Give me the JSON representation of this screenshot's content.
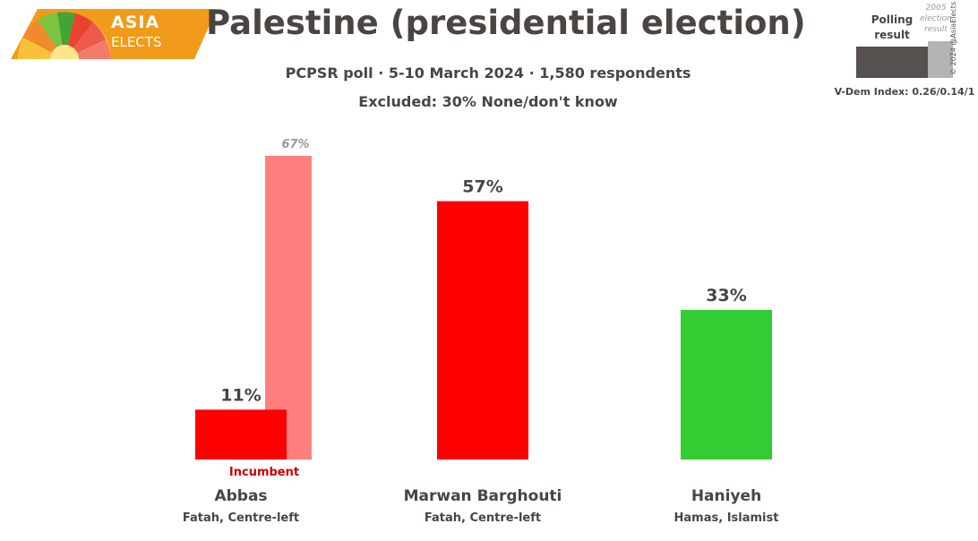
{
  "logo": {
    "line1": "ASIA",
    "line2": "ELECTS"
  },
  "header": {
    "title": "Palestine (presidential election)",
    "subtitle": "PCPSR poll · 5-10 March 2024 · 1,580 respondents",
    "excluded": "Excluded: 30% None/don't know"
  },
  "legend": {
    "poll_label_1": "Polling",
    "poll_label_2": "result",
    "election_label_1": "2005",
    "election_label_2": "election",
    "election_label_3": "result",
    "vdem": "V-Dem Index: 0.26/0.14/1",
    "copyright": "© 2024 @AsiaElects",
    "colors": {
      "poll": "#56514e",
      "election": "#b4b4b4"
    }
  },
  "chart_data": {
    "type": "bar",
    "title": "Palestine (presidential election)",
    "categories": [
      "Abbas",
      "Marwan Barghouti",
      "Haniyeh"
    ],
    "parties": [
      "Fatah, Centre-left",
      "Fatah, Centre-left",
      "Hamas, Islamist"
    ],
    "series": [
      {
        "name": "Polling result",
        "values": [
          11,
          57,
          33
        ],
        "labels": [
          "11%",
          "57%",
          "33%"
        ],
        "colors": [
          "#ff0000",
          "#ff0000",
          "#33cc33"
        ]
      },
      {
        "name": "2005 election result",
        "values": [
          67,
          null,
          null
        ],
        "labels": [
          "67%",
          "",
          ""
        ],
        "colors": [
          "#ff7f7f",
          null,
          null
        ]
      }
    ],
    "annotations": [
      {
        "category": "Abbas",
        "text": "Incumbent"
      }
    ],
    "ylim": [
      0,
      67
    ],
    "xlabel": "",
    "ylabel": ""
  }
}
